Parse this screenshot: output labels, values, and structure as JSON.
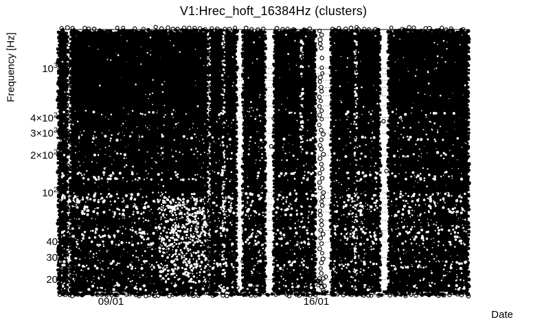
{
  "title": "V1:Hrec_hoft_16384Hz (clusters)",
  "axes": {
    "y_label": "Frequency [Hz]",
    "x_label": "Date",
    "y_ticks": [
      {
        "main": "10",
        "sup": "3",
        "value": 1000
      },
      {
        "main": "4×10",
        "sup": "2",
        "value": 400
      },
      {
        "main": "3×10",
        "sup": "2",
        "value": 300
      },
      {
        "main": "2×10",
        "sup": "2",
        "value": 200
      },
      {
        "main": "10",
        "sup": "2",
        "value": 100
      },
      {
        "main": "40",
        "sup": "",
        "value": 40
      },
      {
        "main": "30",
        "sup": "",
        "value": 30
      },
      {
        "main": "20",
        "sup": "",
        "value": 20
      }
    ],
    "x_ticks": [
      {
        "label": "09/01",
        "day": 9
      },
      {
        "label": "16/01",
        "day": 16
      }
    ],
    "gridline_values": [
      20,
      30,
      40,
      50,
      60,
      70,
      80,
      90,
      100,
      200,
      300,
      400,
      500,
      600,
      700,
      800,
      900,
      1000
    ]
  },
  "chart_data": {
    "type": "scatter",
    "title": "V1:Hrec_hoft_16384Hz (clusters)",
    "xlabel": "Date",
    "ylabel": "Frequency [Hz]",
    "marker": "open black circle, ~6 px diameter, heavily overlapping into solid black bands",
    "color": "#000000",
    "y_scale": "log",
    "ylim_hz": [
      15,
      2070
    ],
    "x_span_days_of_january": [
      7.2,
      21.2
    ],
    "x_tick_labels": [
      "09/01",
      "16/01"
    ],
    "y_tick_labels": [
      "10^3",
      "4x10^2",
      "3x10^2",
      "2x10^2",
      "10^2",
      "40",
      "30",
      "20"
    ],
    "gridlines": "dotted horizontal lines at every minor log tick (20-90, 100-1000)",
    "legend": "none",
    "coverage_segments_day_of_jan": [
      [
        7.23,
        7.49
      ],
      [
        7.65,
        12.27
      ],
      [
        12.41,
        13.25
      ],
      [
        13.53,
        14.23
      ],
      [
        14.58,
        15.94
      ],
      [
        16.53,
        17.35
      ],
      [
        17.38,
        18.14
      ],
      [
        18.49,
        21.16
      ]
    ],
    "gaps_day_of_jan": [
      [
        7.49,
        7.65
      ],
      [
        12.27,
        12.41
      ],
      [
        13.25,
        13.53
      ],
      [
        14.23,
        14.58
      ],
      [
        15.94,
        16.53
      ],
      [
        17.35,
        17.38
      ],
      [
        18.14,
        18.49
      ]
    ],
    "features": {
      "single_file_circle_column_day": [
        16.08,
        16.27
      ],
      "white_speckle_seam_days": [
        12.84,
        15.5,
        17.35
      ],
      "bottom_row": "lowest-frequency row (~15-17 Hz) nearly continuous across gaps",
      "texture": "white speckle inside black bands, strongest between 50 and 100 Hz"
    },
    "n_points": "tens of thousands of overlapping cluster triggers (rendered as solid bands)"
  }
}
